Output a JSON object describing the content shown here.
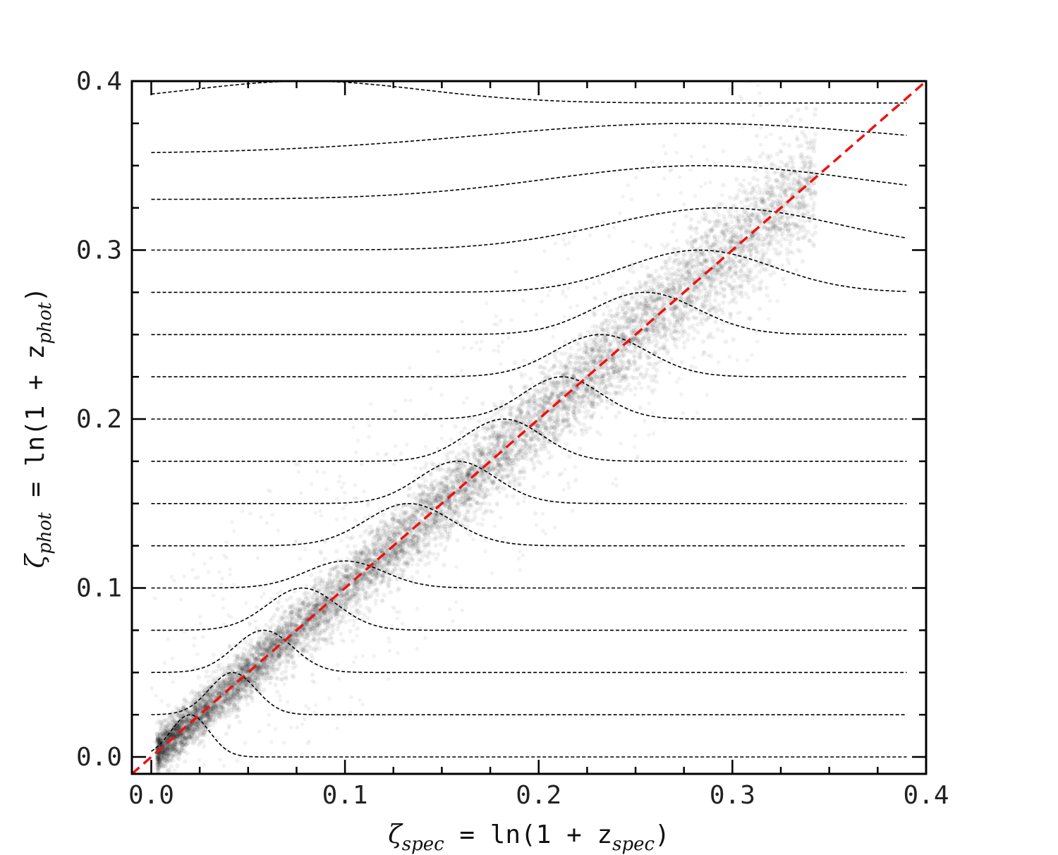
{
  "chart_data": {
    "type": "scatter",
    "xlabel": {
      "symbol": "ζ",
      "sub": "spec",
      "text": " = ln(1 + z",
      "sub2": "spec",
      "close": ")"
    },
    "ylabel": {
      "symbol": "ζ",
      "sub": "phot",
      "text": " = ln(1 + z",
      "sub2": "phot",
      "close": ")"
    },
    "xlim": [
      -0.01,
      0.4
    ],
    "ylim": [
      -0.01,
      0.4
    ],
    "x_ticks": [
      0.0,
      0.1,
      0.2,
      0.3,
      0.4
    ],
    "x_tick_labels": [
      "0.0",
      "0.1",
      "0.2",
      "0.3",
      "0.4"
    ],
    "y_ticks": [
      0.0,
      0.1,
      0.2,
      0.3,
      0.4
    ],
    "y_tick_labels": [
      "0.0",
      "0.1",
      "0.2",
      "0.3",
      "0.4"
    ],
    "reference_line": {
      "x": [
        -0.01,
        0.4
      ],
      "y": [
        -0.01,
        0.4
      ],
      "color": "#ee1111",
      "style": "dashed"
    },
    "pdf_curves": [
      {
        "baseline": 0.0,
        "peak_x": 0.02,
        "peak_y": 0.025,
        "width": 0.01
      },
      {
        "baseline": 0.025,
        "peak_x": 0.042,
        "peak_y": 0.05,
        "width": 0.012
      },
      {
        "baseline": 0.05,
        "peak_x": 0.058,
        "peak_y": 0.075,
        "width": 0.015
      },
      {
        "baseline": 0.075,
        "peak_x": 0.078,
        "peak_y": 0.1,
        "width": 0.018
      },
      {
        "baseline": 0.1,
        "peak_x": 0.1,
        "peak_y": 0.116,
        "width": 0.02
      },
      {
        "baseline": 0.125,
        "peak_x": 0.133,
        "peak_y": 0.15,
        "width": 0.022
      },
      {
        "baseline": 0.15,
        "peak_x": 0.158,
        "peak_y": 0.175,
        "width": 0.02
      },
      {
        "baseline": 0.175,
        "peak_x": 0.182,
        "peak_y": 0.2,
        "width": 0.02
      },
      {
        "baseline": 0.2,
        "peak_x": 0.212,
        "peak_y": 0.225,
        "width": 0.02
      },
      {
        "baseline": 0.225,
        "peak_x": 0.232,
        "peak_y": 0.25,
        "width": 0.024
      },
      {
        "baseline": 0.25,
        "peak_x": 0.255,
        "peak_y": 0.275,
        "width": 0.027
      },
      {
        "baseline": 0.275,
        "peak_x": 0.283,
        "peak_y": 0.3,
        "width": 0.038
      },
      {
        "baseline": 0.3,
        "peak_x": 0.295,
        "peak_y": 0.325,
        "width": 0.06
      },
      {
        "baseline": 0.33,
        "peak_x": 0.285,
        "peak_y": 0.35,
        "width": 0.08
      },
      {
        "baseline": 0.357,
        "peak_x": 0.28,
        "peak_y": 0.375,
        "width": 0.11
      },
      {
        "baseline": 0.387,
        "peak_x": 0.08,
        "peak_y": 0.4,
        "width": 0.06
      }
    ],
    "scatter_density": {
      "color": "#000000",
      "relation": "x ≈ y",
      "x_range": [
        0.0,
        0.35
      ]
    },
    "grid": false,
    "legend": "none",
    "colors": {
      "points": "#000000",
      "curves": "#000000",
      "reference": "#ee1111"
    }
  }
}
